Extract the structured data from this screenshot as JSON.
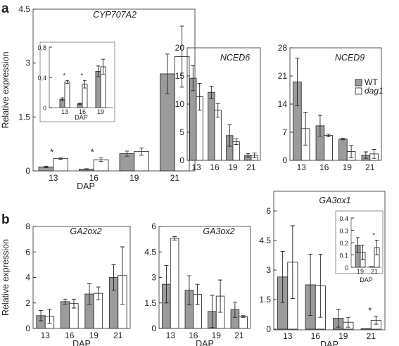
{
  "figure": {
    "panel_labels": [
      "a",
      "b"
    ],
    "ylabel": "Relative expression",
    "legend": [
      {
        "label": "WT",
        "color": "#9b9b9b",
        "italic": false
      },
      {
        "label": "dag1",
        "color": "#ffffff",
        "italic": true
      }
    ],
    "colors": {
      "wt": "#9b9b9b",
      "dag1": "#ffffff",
      "stroke": "#333333"
    }
  },
  "chart_data": [
    {
      "type": "bar",
      "title": "CYP707A2",
      "xlabel": "DAP",
      "ylabel": "Relative expression",
      "categories": [
        "13",
        "16",
        "19",
        "21"
      ],
      "ylim": [
        0,
        4.5
      ],
      "yticks": [
        "0",
        "1.5",
        "3",
        "4.5"
      ],
      "series": [
        {
          "name": "WT",
          "values": [
            0.11,
            0.05,
            0.48,
            2.7
          ],
          "errors": [
            0.02,
            0.01,
            0.07,
            0.55
          ]
        },
        {
          "name": "dag1",
          "values": [
            0.34,
            0.31,
            0.54,
            3.18
          ],
          "errors": [
            0.02,
            0.05,
            0.1,
            0.85
          ]
        }
      ],
      "stars": [
        {
          "category_index": 0,
          "label": "*"
        },
        {
          "category_index": 1,
          "label": "*"
        }
      ],
      "inset": {
        "xlabel": "DAP",
        "categories": [
          "13",
          "16",
          "19"
        ],
        "ylim": [
          0,
          0.8
        ],
        "yticks": [
          "0",
          "0,4",
          "0,8"
        ],
        "series": [
          {
            "name": "WT",
            "values": [
              0.11,
              0.05,
              0.48
            ],
            "errors": [
              0.02,
              0.01,
              0.07
            ]
          },
          {
            "name": "dag1",
            "values": [
              0.34,
              0.31,
              0.54
            ],
            "errors": [
              0.02,
              0.05,
              0.1
            ]
          }
        ],
        "stars": [
          {
            "category_index": 0,
            "label": "*"
          },
          {
            "category_index": 1,
            "label": "*"
          }
        ]
      }
    },
    {
      "type": "bar",
      "title": "NCED6",
      "categories": [
        "13",
        "16",
        "19",
        "21"
      ],
      "ylim": [
        0,
        20
      ],
      "yticks": [
        "0",
        "5",
        "10",
        "15",
        "20"
      ],
      "series": [
        {
          "name": "WT",
          "values": [
            14.6,
            12.1,
            4.4,
            0.9
          ],
          "errors": [
            2.2,
            1.1,
            1.9,
            0.3
          ]
        },
        {
          "name": "dag1",
          "values": [
            11.3,
            8.9,
            3.3,
            0.9
          ],
          "errors": [
            2.4,
            1.2,
            0.5,
            0.4
          ]
        }
      ]
    },
    {
      "type": "bar",
      "title": "NCED9",
      "categories": [
        "13",
        "16",
        "19",
        "21"
      ],
      "ylim": [
        0,
        28
      ],
      "yticks": [
        "0",
        "7",
        "14",
        "21",
        "28"
      ],
      "series": [
        {
          "name": "WT",
          "values": [
            19.5,
            8.6,
            5.3,
            1.3
          ],
          "errors": [
            5.9,
            2.6,
            0.2,
            0.8
          ]
        },
        {
          "name": "dag1",
          "values": [
            7.9,
            6.2,
            2.2,
            1.6
          ],
          "errors": [
            4.1,
            0.3,
            1.5,
            1.1
          ]
        }
      ]
    },
    {
      "type": "bar",
      "title": "GA2ox2",
      "xlabel": "DAP",
      "ylabel": "Relative expression",
      "categories": [
        "13",
        "16",
        "19",
        "21"
      ],
      "ylim": [
        0,
        8
      ],
      "yticks": [
        "0",
        "2",
        "4",
        "6",
        "8"
      ],
      "series": [
        {
          "name": "WT",
          "values": [
            1.0,
            2.1,
            2.7,
            4.0
          ],
          "errors": [
            0.4,
            0.2,
            0.8,
            1.0
          ]
        },
        {
          "name": "dag1",
          "values": [
            0.95,
            1.95,
            2.75,
            4.15
          ],
          "errors": [
            0.55,
            0.35,
            0.5,
            2.25
          ]
        }
      ]
    },
    {
      "type": "bar",
      "title": "GA3ox2",
      "xlabel": "DAP",
      "categories": [
        "13",
        "16",
        "19",
        "21"
      ],
      "ylim": [
        0,
        6
      ],
      "yticks": [
        "0",
        "1.5",
        "3",
        "4.5",
        "6"
      ],
      "series": [
        {
          "name": "WT",
          "values": [
            2.6,
            2.25,
            1.0,
            1.1
          ],
          "errors": [
            1.1,
            0.85,
            0.95,
            0.45
          ]
        },
        {
          "name": "dag1",
          "values": [
            5.3,
            2.0,
            1.9,
            0.7
          ],
          "errors": [
            0.1,
            0.6,
            0.95,
            0.05
          ]
        }
      ]
    },
    {
      "type": "bar",
      "title": "GA3ox1",
      "xlabel": "DAP",
      "categories": [
        "13",
        "16",
        "19",
        "21"
      ],
      "ylim": [
        0,
        6
      ],
      "yticks": [
        "0",
        "1.5",
        "3",
        "4.5",
        "6"
      ],
      "series": [
        {
          "name": "WT",
          "values": [
            2.65,
            2.25,
            0.55,
            0.0
          ],
          "errors": [
            1.3,
            1.55,
            0.45,
            0.0
          ]
        },
        {
          "name": "dag1",
          "values": [
            3.4,
            2.2,
            0.35,
            0.45
          ],
          "errors": [
            1.85,
            1.6,
            0.25,
            0.2
          ]
        }
      ],
      "stars": [
        {
          "category_index": 3,
          "label": "*"
        }
      ],
      "inset": {
        "xlabel": "DAP",
        "categories": [
          "19",
          "21"
        ],
        "ylim": [
          0,
          0.4
        ],
        "yticks": [
          "0",
          "0.1",
          "0.2",
          "0.3",
          "0.4"
        ],
        "series": [
          {
            "name": "WT",
            "values": [
              0.18,
              0.005
            ],
            "errors": [
              0.06,
              0.0
            ]
          },
          {
            "name": "dag1",
            "values": [
              0.12,
              0.16
            ],
            "errors": [
              0.06,
              0.06
            ]
          }
        ],
        "stars": [
          {
            "category_index": 1,
            "label": "*"
          }
        ]
      }
    }
  ]
}
